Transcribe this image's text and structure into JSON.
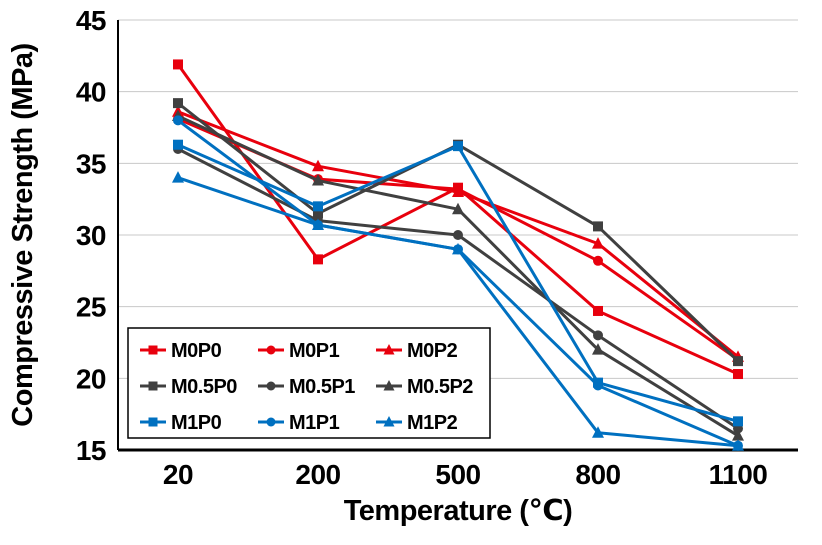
{
  "chart_data": {
    "type": "line",
    "title": "",
    "xlabel": "Temperature (℃)",
    "ylabel": "Compressive Strength (MPa)",
    "categories": [
      "20",
      "200",
      "500",
      "800",
      "1100"
    ],
    "x_values": [
      20,
      200,
      500,
      800,
      1100
    ],
    "ylim": [
      15,
      45
    ],
    "yticks": [
      15,
      20,
      25,
      30,
      35,
      40,
      45
    ],
    "grid": "horizontal",
    "legend_position": "inside-bottom-left",
    "accent_colors": {
      "red": "#e8000d",
      "dark": "#404040",
      "blue": "#0070c0"
    },
    "series": [
      {
        "name": "M0P0",
        "color": "#e8000d",
        "marker": "square",
        "values": [
          41.9,
          28.3,
          33.3,
          24.7,
          20.3
        ]
      },
      {
        "name": "M0P1",
        "color": "#e8000d",
        "marker": "circle",
        "values": [
          38.1,
          33.9,
          33.2,
          28.2,
          21.3
        ]
      },
      {
        "name": "M0P2",
        "color": "#e8000d",
        "marker": "triangle",
        "values": [
          38.6,
          34.8,
          33.0,
          29.4,
          21.5
        ]
      },
      {
        "name": "M0.5P0",
        "color": "#404040",
        "marker": "square",
        "values": [
          39.2,
          31.5,
          36.3,
          30.6,
          21.2
        ]
      },
      {
        "name": "M0.5P1",
        "color": "#404040",
        "marker": "circle",
        "values": [
          36.0,
          31.0,
          30.0,
          23.0,
          16.5
        ]
      },
      {
        "name": "M0.5P2",
        "color": "#404040",
        "marker": "triangle",
        "values": [
          38.3,
          33.8,
          31.8,
          22.0,
          16.0
        ]
      },
      {
        "name": "M1P0",
        "color": "#0070c0",
        "marker": "square",
        "values": [
          36.3,
          32.0,
          36.2,
          19.7,
          17.0
        ]
      },
      {
        "name": "M1P1",
        "color": "#0070c0",
        "marker": "circle",
        "values": [
          38.0,
          30.7,
          29.0,
          19.5,
          15.3
        ]
      },
      {
        "name": "M1P2",
        "color": "#0070c0",
        "marker": "triangle",
        "values": [
          34.0,
          30.7,
          29.0,
          16.2,
          15.3
        ]
      }
    ]
  }
}
